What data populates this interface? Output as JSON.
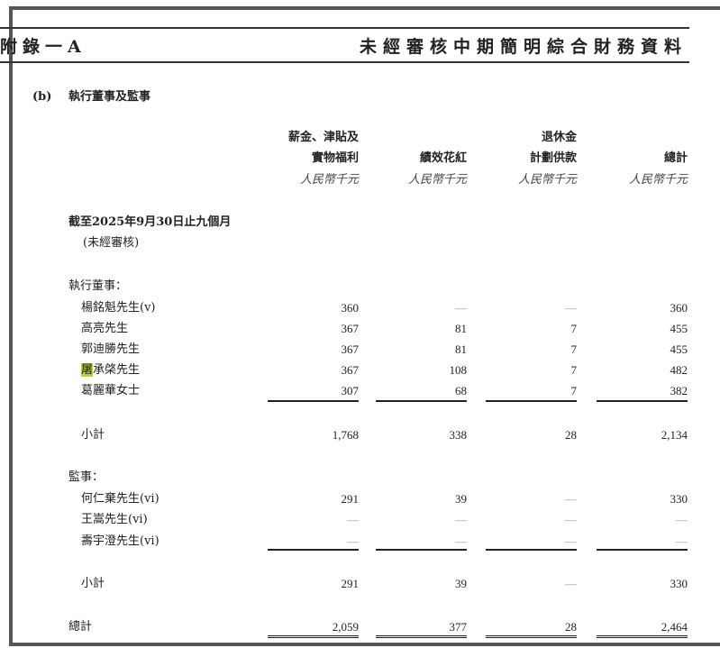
{
  "header": {
    "left": "附錄一A",
    "right": "未經審核中期簡明綜合財務資料"
  },
  "section": {
    "marker": "(b)",
    "title": "執行董事及監事"
  },
  "columns": [
    {
      "line1": "薪金、津貼及",
      "line2": "實物福利",
      "unit": "人民幣千元"
    },
    {
      "line1": "",
      "line2": "績效花紅",
      "unit": "人民幣千元"
    },
    {
      "line1": "退休金",
      "line2": "計劃供款",
      "unit": "人民幣千元"
    },
    {
      "line1": "",
      "line2": "總計",
      "unit": "人民幣千元"
    }
  ],
  "period": {
    "title": "截至2025年9月30日止九個月",
    "note": "(未經審核)"
  },
  "executive": {
    "label": "執行董事：",
    "rows": [
      {
        "name": "楊銘魁先生(v)",
        "values": [
          "360",
          "—",
          "—",
          "360"
        ]
      },
      {
        "name": "高亮先生",
        "values": [
          "367",
          "81",
          "7",
          "455"
        ]
      },
      {
        "name": "郭迪勝先生",
        "values": [
          "367",
          "81",
          "7",
          "455"
        ]
      },
      {
        "name_highlight": "屠",
        "name": "承棨先生",
        "values": [
          "367",
          "108",
          "7",
          "482"
        ]
      },
      {
        "name": "葛麗華女士",
        "values": [
          "307",
          "68",
          "7",
          "382"
        ]
      }
    ],
    "subtotal": {
      "label": "小計",
      "values": [
        "1,768",
        "338",
        "28",
        "2,134"
      ]
    }
  },
  "supervisors": {
    "label": "監事：",
    "rows": [
      {
        "name": "何仁棄先生(vi)",
        "values": [
          "291",
          "39",
          "—",
          "330"
        ]
      },
      {
        "name": "王嵩先生(vi)",
        "values": [
          "—",
          "—",
          "—",
          "—"
        ]
      },
      {
        "name": "壽宇澄先生(vi)",
        "values": [
          "—",
          "—",
          "—",
          "—"
        ]
      }
    ],
    "subtotal": {
      "label": "小計",
      "values": [
        "291",
        "39",
        "—",
        "330"
      ]
    }
  },
  "total": {
    "label": "總計",
    "values": [
      "2,059",
      "377",
      "28",
      "2,464"
    ]
  },
  "colors": {
    "highlight": "#b5d334",
    "frame": "#555555"
  }
}
